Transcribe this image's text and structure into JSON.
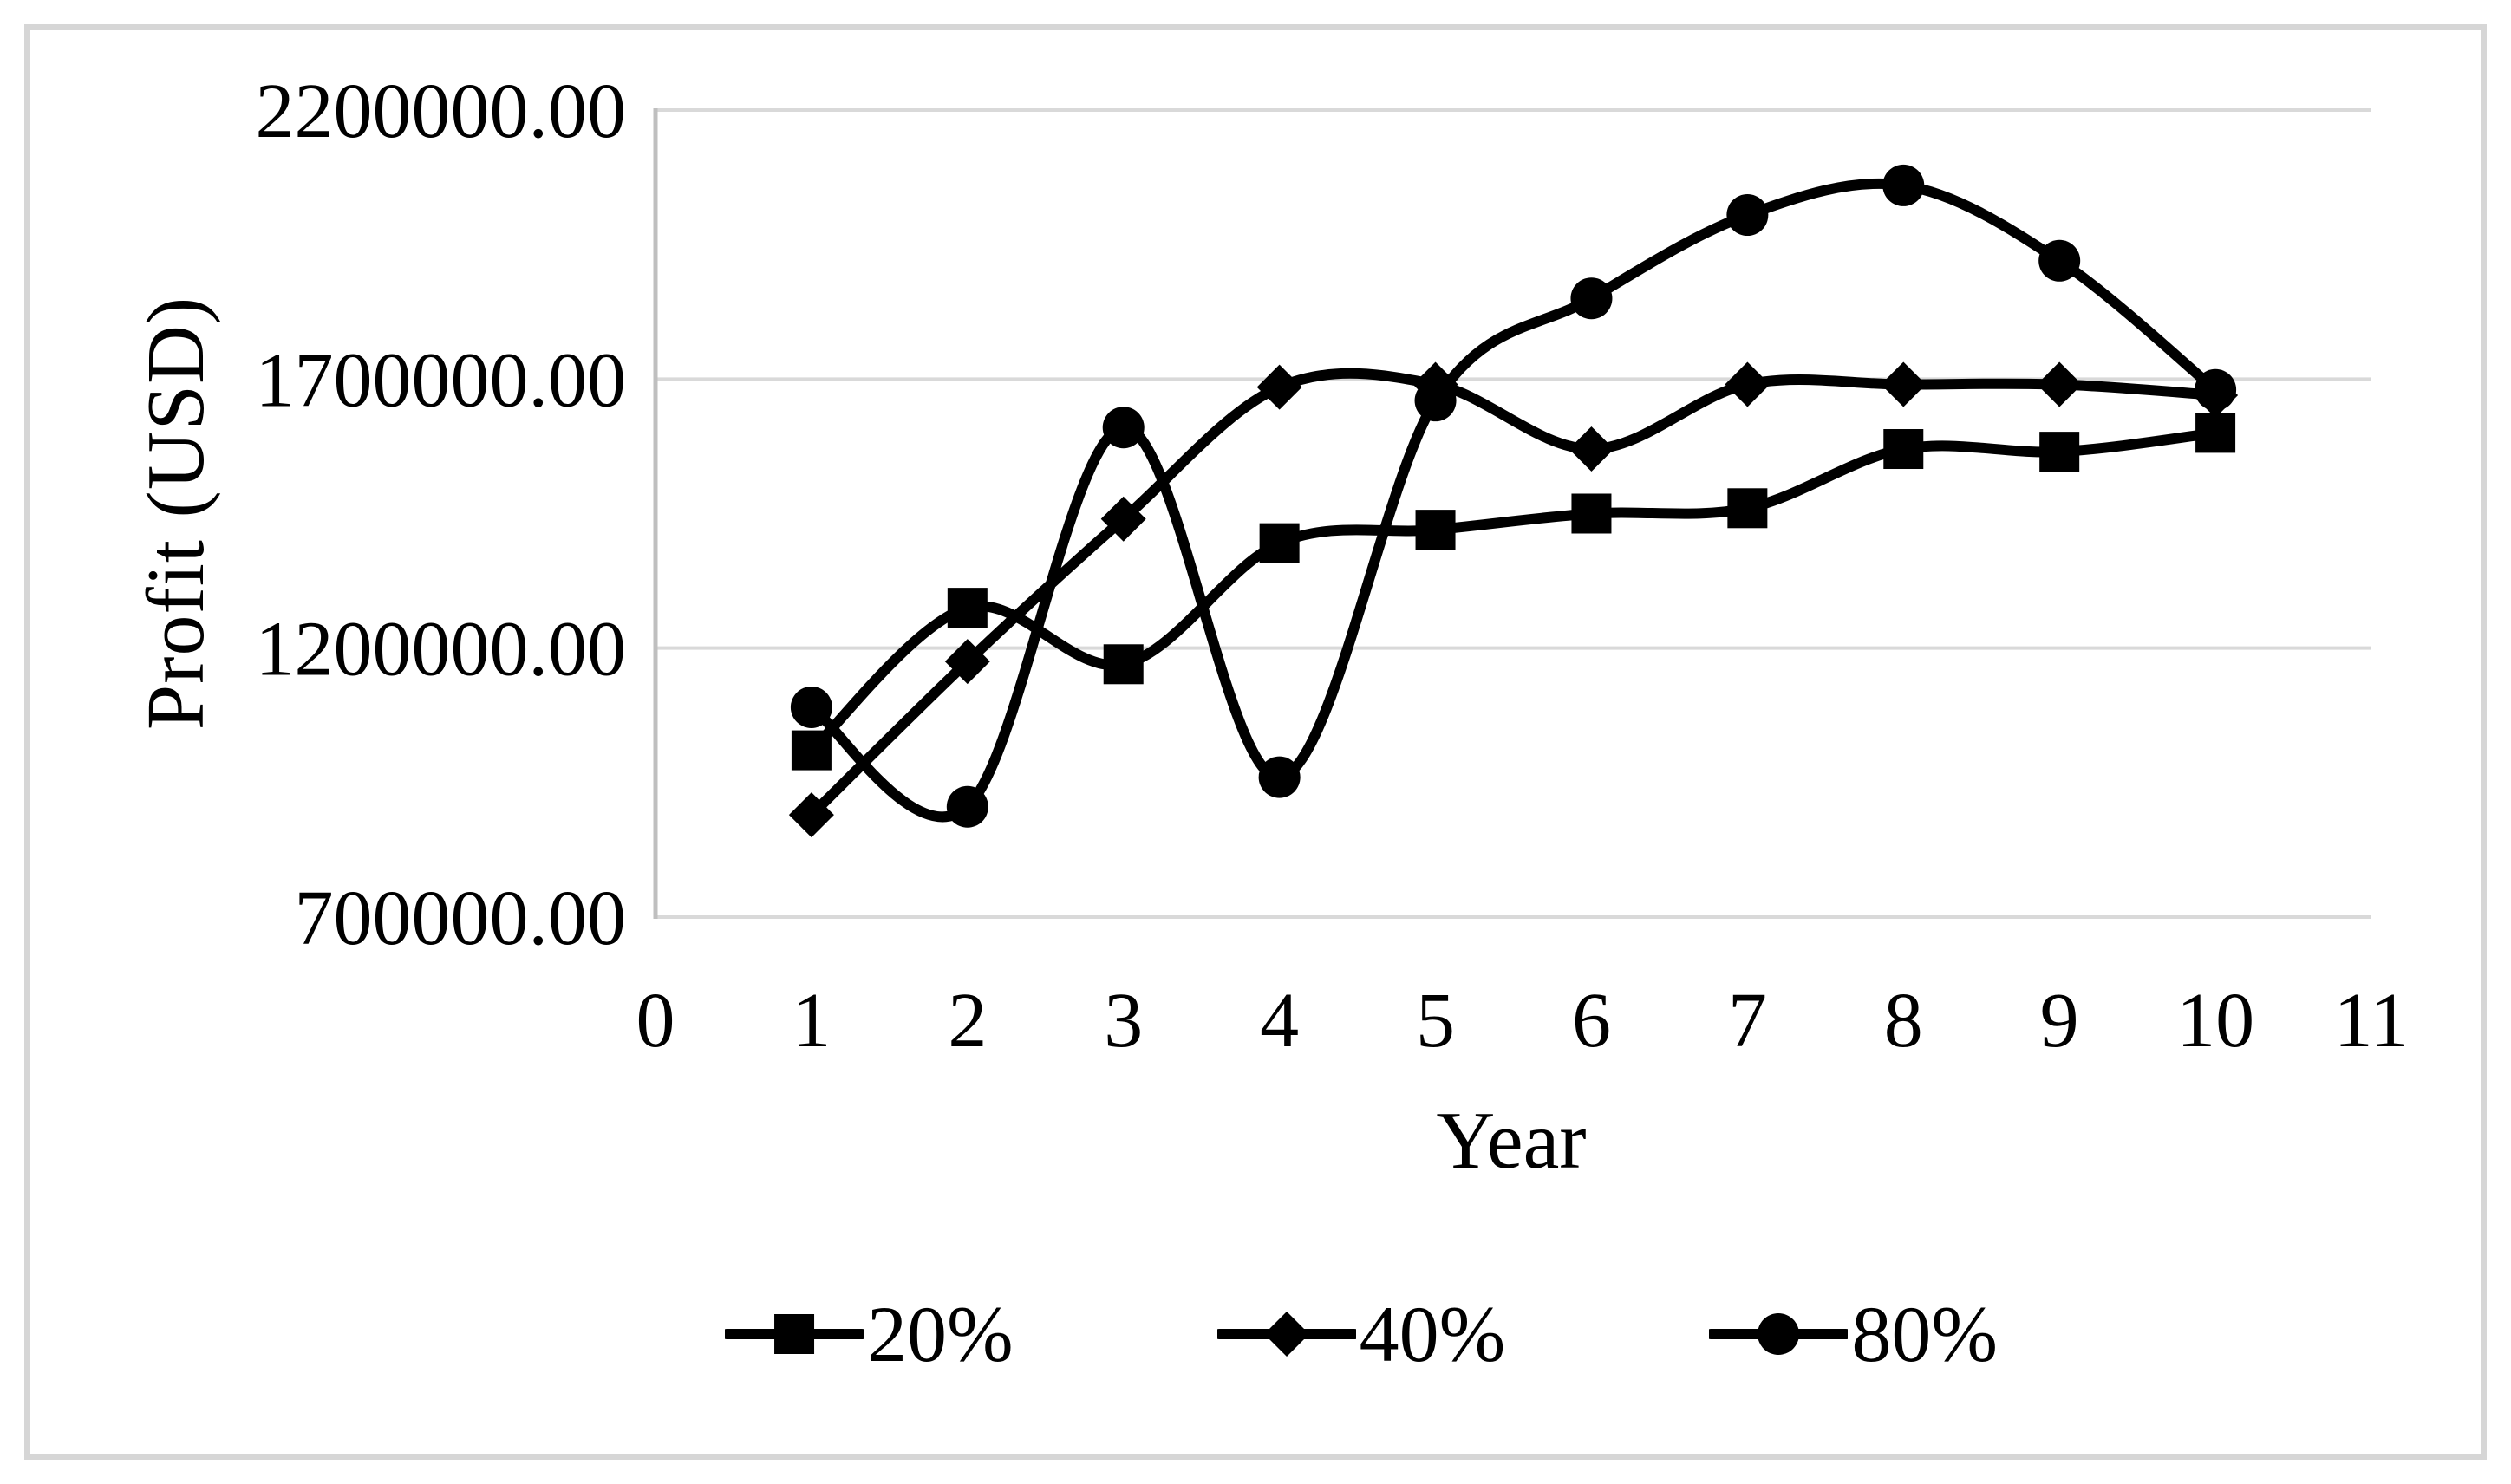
{
  "chart_data": {
    "type": "line",
    "title": "",
    "xlabel": "Year",
    "ylabel": "Profit (USD)",
    "x": [
      1,
      2,
      3,
      4,
      5,
      6,
      7,
      8,
      9,
      10
    ],
    "xlim": [
      0,
      11
    ],
    "ylim": [
      700000,
      2200000
    ],
    "xticks": [
      "0",
      "1",
      "2",
      "3",
      "4",
      "5",
      "6",
      "7",
      "8",
      "9",
      "10",
      "11"
    ],
    "yticks": [
      {
        "value": 700000,
        "label": "700000.00"
      },
      {
        "value": 1200000,
        "label": "1200000.00"
      },
      {
        "value": 1700000,
        "label": "1700000.00"
      },
      {
        "value": 2200000,
        "label": "2200000.00"
      }
    ],
    "grid": "horizontal gridlines on",
    "legend_position": "bottom",
    "line_style": "smoothed, black, thick",
    "series": [
      {
        "name": "20%",
        "marker": "square",
        "values": [
          1010000,
          1275000,
          1170000,
          1395000,
          1420000,
          1450000,
          1460000,
          1570000,
          1565000,
          1600000
        ]
      },
      {
        "name": "40%",
        "marker": "diamond",
        "values": [
          890000,
          1175000,
          1440000,
          1685000,
          1690000,
          1570000,
          1690000,
          1690000,
          1690000,
          1670000
        ]
      },
      {
        "name": "80%",
        "marker": "circle",
        "values": [
          1090000,
          905000,
          1610000,
          960000,
          1660000,
          1850000,
          2005000,
          2060000,
          1920000,
          1680000
        ]
      }
    ]
  },
  "colors": {
    "series_line": "#000000",
    "gridline": "#d9d9d9",
    "axis_line": "#bfbfbf",
    "frame_border": "#d6d6d6",
    "text": "#000000",
    "background": "#ffffff"
  }
}
